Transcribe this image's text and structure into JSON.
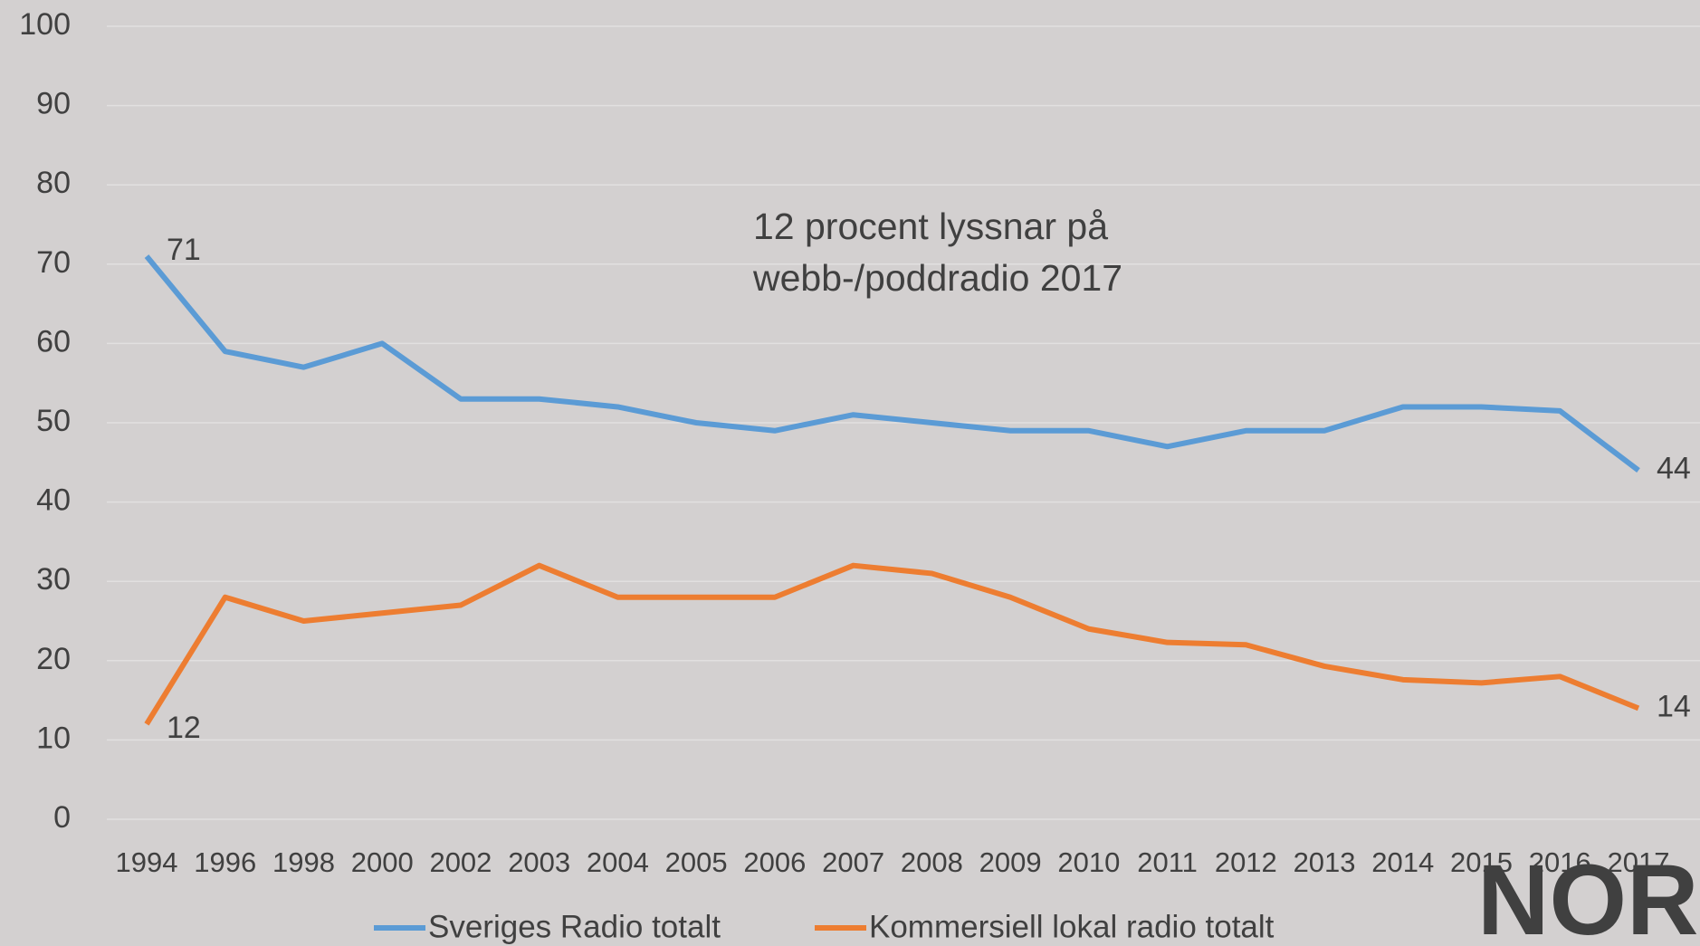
{
  "chart_data": {
    "type": "line",
    "categories": [
      "1994",
      "1996",
      "1998",
      "2000",
      "2002",
      "2003",
      "2004",
      "2005",
      "2006",
      "2007",
      "2008",
      "2009",
      "2010",
      "2011",
      "2012",
      "2013",
      "2014",
      "2015",
      "2016",
      "2017"
    ],
    "series": [
      {
        "name": "Sveriges Radio totalt",
        "color": "#5b9bd5",
        "values": [
          71,
          59,
          57,
          60,
          53,
          53,
          52,
          50,
          49,
          51,
          50,
          49,
          49,
          47,
          49,
          49,
          52,
          52,
          51.5,
          44
        ],
        "value_labels": [
          "71",
          null,
          null,
          null,
          null,
          null,
          null,
          null,
          null,
          null,
          null,
          null,
          null,
          null,
          null,
          null,
          null,
          null,
          null,
          "44"
        ]
      },
      {
        "name": "Kommersiell lokal radio totalt",
        "color": "#ed7d31",
        "values": [
          12,
          28,
          25,
          26,
          27,
          32,
          28,
          28,
          28,
          32,
          31,
          28,
          24,
          22.3,
          22,
          19.3,
          17.6,
          17.2,
          18,
          14
        ],
        "value_labels": [
          "12",
          null,
          null,
          null,
          null,
          null,
          null,
          null,
          null,
          null,
          null,
          null,
          null,
          null,
          null,
          null,
          null,
          null,
          null,
          "14"
        ]
      }
    ],
    "ylim": [
      0,
      100
    ],
    "yticks": [
      0,
      10,
      20,
      30,
      40,
      50,
      60,
      70,
      80,
      90,
      100
    ],
    "grid": true,
    "annotation": [
      "12 procent lyssnar på",
      "webb-/poddradio 2017"
    ],
    "logo": "NOR"
  }
}
